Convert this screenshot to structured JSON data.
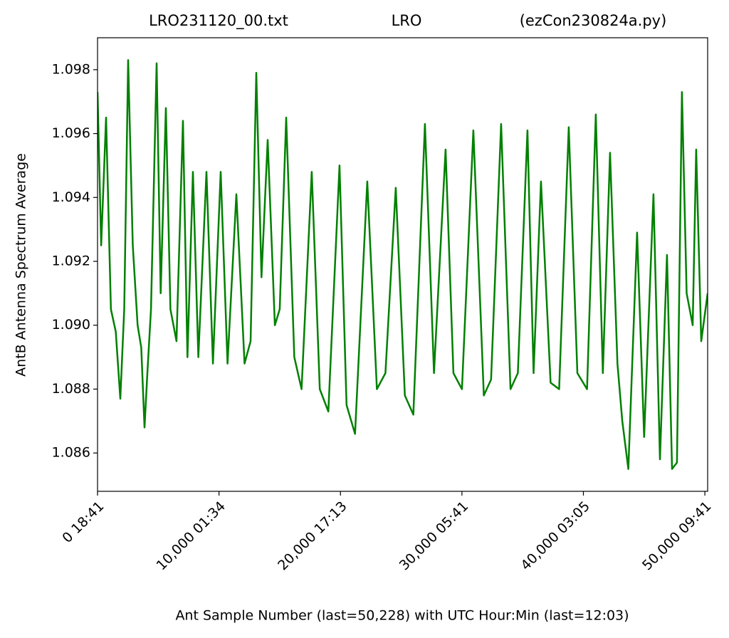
{
  "chart_data": {
    "type": "line",
    "title_parts": [
      "LRO231120_00.txt",
      "LRO",
      "(ezCon230824a.py)"
    ],
    "x_label": "Ant Sample Number (last=50,228) with UTC Hour:Min (last=12:03)",
    "y_label": "AntB Antenna Spectrum Average",
    "color": "#008000",
    "xlim": [
      0,
      50228
    ],
    "ylim": [
      1.0848,
      1.099
    ],
    "xticks": [
      {
        "value": 0,
        "label": "0  18:41"
      },
      {
        "value": 10000,
        "label": "10,000  01:34"
      },
      {
        "value": 20000,
        "label": "20,000  17:13"
      },
      {
        "value": 30000,
        "label": "30,000  05:41"
      },
      {
        "value": 40000,
        "label": "40,000  03:05"
      },
      {
        "value": 50000,
        "label": "50,000  09:41"
      }
    ],
    "yticks": [
      1.086,
      1.088,
      {
        "value": 1.09,
        "label": "1.090"
      },
      1.092,
      1.094,
      1.096,
      1.098
    ],
    "x": [
      0,
      300,
      703,
      1100,
      1500,
      1875,
      2200,
      2520,
      2900,
      3300,
      3600,
      3868,
      4100,
      4400,
      4864,
      5200,
      5626,
      6000,
      6500,
      7033,
      7400,
      7853,
      8300,
      8966,
      9500,
      10138,
      10700,
      11427,
      12100,
      12600,
      13068,
      13500,
      14005,
      14600,
      15000,
      15529,
      16200,
      16800,
      17638,
      18300,
      19000,
      19924,
      20500,
      21200,
      22209,
      23000,
      23700,
      24553,
      25300,
      26000,
      26956,
      27700,
      28655,
      29300,
      30000,
      30941,
      31800,
      32400,
      33226,
      34000,
      34600,
      35394,
      35900,
      36508,
      37300,
      38000,
      38793,
      39500,
      40300,
      41020,
      41600,
      42192,
      42800,
      43200,
      43700,
      44419,
      45000,
      45766,
      46300,
      46879,
      47300,
      47700,
      48110,
      48500,
      49000,
      49282,
      49700,
      50228
    ],
    "values": [
      1.0973,
      1.0925,
      1.0965,
      1.0905,
      1.0898,
      1.0877,
      1.0905,
      1.0983,
      1.0925,
      1.09,
      1.0893,
      1.0868,
      1.0885,
      1.0905,
      1.0982,
      1.091,
      1.0968,
      1.0905,
      1.0895,
      1.0964,
      1.089,
      1.0948,
      1.089,
      1.0948,
      1.0888,
      1.0948,
      1.0888,
      1.0941,
      1.0888,
      1.0895,
      1.0979,
      1.0915,
      1.0958,
      1.09,
      1.0905,
      1.0965,
      1.089,
      1.088,
      1.0948,
      1.088,
      1.0873,
      1.095,
      1.0875,
      1.0866,
      1.0945,
      1.088,
      1.0885,
      1.0943,
      1.0878,
      1.0872,
      1.0963,
      1.0885,
      1.0955,
      1.0885,
      1.088,
      1.0961,
      1.0878,
      1.0883,
      1.0963,
      1.088,
      1.0885,
      1.0961,
      1.0885,
      1.0945,
      1.0882,
      1.088,
      1.0962,
      1.0885,
      1.088,
      1.0966,
      1.0885,
      1.0954,
      1.0888,
      1.087,
      1.0855,
      1.0929,
      1.0865,
      1.0941,
      1.0858,
      1.0922,
      1.0855,
      1.0857,
      1.0973,
      1.091,
      1.09,
      1.0955,
      1.0895,
      1.091
    ]
  }
}
